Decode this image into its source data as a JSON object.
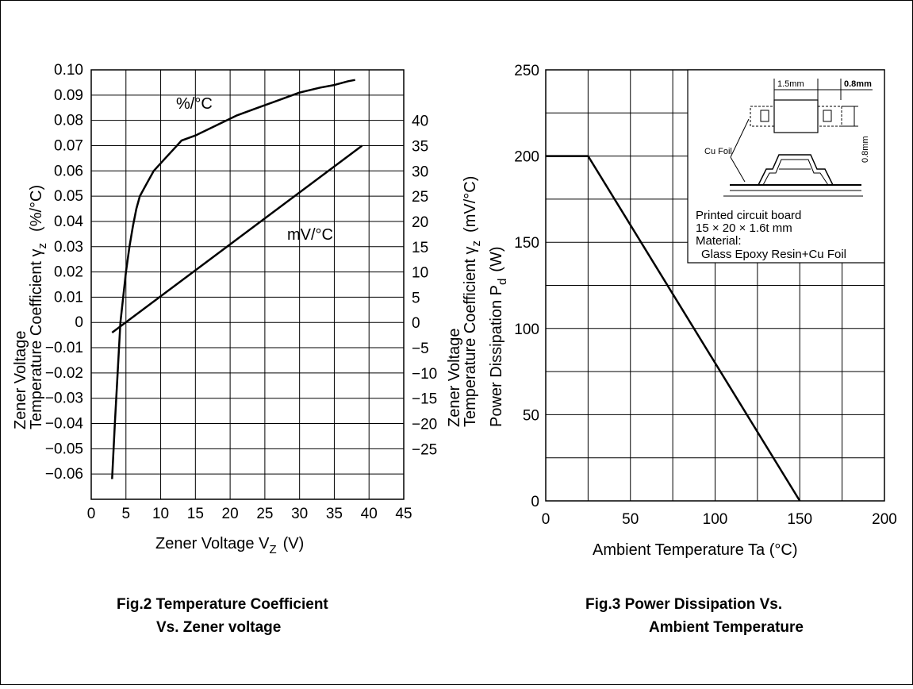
{
  "chart_data": [
    {
      "type": "line",
      "caption_line1": "Fig.2   Temperature Coefficient",
      "caption_line2": "Vs. Zener voltage",
      "xlabel": "Zener Voltage  V",
      "xlabel_sub": "Z",
      "xlabel_unit": "(V)",
      "ylabel_left_line1": "Zener Voltage",
      "ylabel_left_line2": "Temperature Coefficient  γ",
      "ylabel_left_sub": "z",
      "ylabel_left_unit": "(%/°C)",
      "ylabel_right_line1": "Zener Voltage",
      "ylabel_right_line2": "Temperature Coefficient  γ",
      "ylabel_right_sub": "z",
      "ylabel_right_unit": "(mV/°C)",
      "xlim": [
        0,
        45
      ],
      "ylim": [
        -0.07,
        0.1
      ],
      "x_ticks": [
        "0",
        "5",
        "10",
        "15",
        "20",
        "25",
        "30",
        "35",
        "40",
        "45"
      ],
      "y_left_ticks": [
        "0.10",
        "0.09",
        "0.08",
        "0.07",
        "0.06",
        "0.05",
        "0.04",
        "0.03",
        "0.02",
        "0.01",
        "0",
        "−0.01",
        "−0.02",
        "−0.03",
        "−0.04",
        "−0.05",
        "−0.06"
      ],
      "y_right_ticks": [
        "40",
        "35",
        "30",
        "25",
        "20",
        "15",
        "10",
        "5",
        "0",
        "−5",
        "−10",
        "−15",
        "−20",
        "−25"
      ],
      "y_right_lim": [
        -25,
        40
      ],
      "grid": true,
      "series": [
        {
          "name": "%/°C",
          "axis": "left",
          "x": [
            3,
            3.4,
            3.8,
            4.2,
            4.6,
            5,
            5.5,
            6,
            6.5,
            7,
            8,
            9,
            10,
            11,
            12,
            13,
            15,
            18,
            21,
            24,
            27,
            30,
            33,
            35,
            37,
            38
          ],
          "y": [
            -0.062,
            -0.04,
            -0.02,
            0,
            0.01,
            0.02,
            0.03,
            0.038,
            0.045,
            0.05,
            0.055,
            0.06,
            0.063,
            0.066,
            0.069,
            0.072,
            0.074,
            0.078,
            0.082,
            0.085,
            0.088,
            0.091,
            0.093,
            0.094,
            0.0955,
            0.096
          ]
        },
        {
          "name": "mV/°C",
          "axis": "right",
          "x": [
            3,
            39
          ],
          "y": [
            -2,
            35
          ]
        }
      ]
    },
    {
      "type": "line",
      "caption_line1": "Fig.3   Power Dissipation Vs.",
      "caption_line2": "Ambient Temperature",
      "xlabel": "Ambient Temperature Ta (°C)",
      "ylabel_line1": "Power Dissipation  P",
      "ylabel_sub": "d",
      "ylabel_unit": "(W)",
      "xlim": [
        0,
        200
      ],
      "ylim": [
        0,
        250
      ],
      "x_ticks": [
        "0",
        "50",
        "100",
        "150",
        "200"
      ],
      "y_ticks": [
        "250",
        "200",
        "150",
        "100",
        "50",
        "0"
      ],
      "grid": true,
      "series": [
        {
          "x": [
            0,
            25,
            150
          ],
          "y": [
            200,
            200,
            0
          ]
        }
      ],
      "inset": {
        "dim_width": "1.5mm",
        "dim_gap": "0.8mm",
        "dim_height": "0.8mm",
        "foil_label": "Cu Foil",
        "board_line1": "Printed circuit board",
        "board_line2": "15 × 20 × 1.6t mm",
        "board_line3": "Material:",
        "board_line4": "Glass Epoxy Resin+Cu Foil"
      }
    }
  ]
}
